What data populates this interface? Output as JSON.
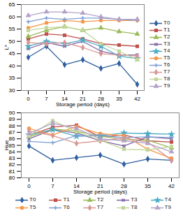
{
  "chart_data": [
    {
      "type": "line",
      "x_label": "Storage period (days)",
      "y_label": "L*",
      "categories": [
        "0",
        "7",
        "14",
        "21",
        "28",
        "35",
        "42"
      ],
      "ylim": [
        30,
        65
      ],
      "yticks": [
        30,
        35,
        40,
        45,
        50,
        55,
        60,
        65
      ],
      "legend": "right",
      "series": [
        {
          "name": "T0",
          "color": "#2f5f9e",
          "marker": "diamond",
          "values": [
            43.5,
            48,
            40.5,
            42.5,
            39,
            41,
            32.5
          ]
        },
        {
          "name": "T1",
          "color": "#c0504d",
          "marker": "square",
          "values": [
            51,
            53,
            52.5,
            51,
            49,
            48.5,
            48
          ]
        },
        {
          "name": "T2",
          "color": "#9bbb59",
          "marker": "triangle",
          "values": [
            52,
            54.5,
            56,
            54.5,
            55.5,
            54,
            53
          ]
        },
        {
          "name": "T3",
          "color": "#8064a2",
          "marker": "times",
          "values": [
            47,
            49.5,
            48,
            50,
            46,
            44.5,
            44.5
          ]
        },
        {
          "name": "T4",
          "color": "#4bacc6",
          "marker": "star",
          "values": [
            48,
            50,
            49,
            50.5,
            48,
            44,
            43
          ]
        },
        {
          "name": "T5",
          "color": "#f79646",
          "marker": "circle",
          "values": [
            55.5,
            57.5,
            58.5,
            58,
            58.5,
            58.5,
            58.5
          ]
        },
        {
          "name": "T6",
          "color": "#7f9fd4",
          "marker": "plus",
          "values": [
            58,
            59.5,
            59,
            59.5,
            59.5,
            59,
            58.5
          ]
        },
        {
          "name": "T7",
          "color": "#d99694",
          "marker": "diamond",
          "values": [
            49.5,
            49,
            49.5,
            47.5,
            45,
            44.5,
            44
          ]
        },
        {
          "name": "T8",
          "color": "#c3d69b",
          "marker": "square",
          "values": [
            54.5,
            55.5,
            56,
            54.5,
            49,
            46,
            42.5
          ]
        },
        {
          "name": "T9",
          "color": "#b3a2c7",
          "marker": "triangle",
          "values": [
            60.5,
            62,
            62,
            61.5,
            60,
            59,
            59
          ]
        }
      ]
    },
    {
      "type": "line",
      "x_label": "Storage period (days)",
      "y_label": "Hue",
      "categories": [
        "0",
        "7",
        "14",
        "21",
        "28",
        "35",
        "42"
      ],
      "ylim": [
        80,
        90
      ],
      "yticks": [
        80,
        81,
        82,
        83,
        84,
        85,
        86,
        87,
        88,
        89,
        90
      ],
      "legend": "bottom",
      "series": [
        {
          "name": "T0",
          "color": "#2f5f9e",
          "marker": "diamond",
          "values": [
            84.9,
            82.7,
            83.1,
            83.5,
            82.1,
            82.9,
            82.7
          ]
        },
        {
          "name": "T1",
          "color": "#c0504d",
          "marker": "square",
          "values": [
            86.5,
            87.8,
            88.1,
            86.3,
            86.6,
            85.7,
            85.5
          ]
        },
        {
          "name": "T2",
          "color": "#9bbb59",
          "marker": "triangle",
          "values": [
            86.3,
            87.5,
            87.2,
            86.4,
            85.9,
            85.8,
            84.6
          ]
        },
        {
          "name": "T3",
          "color": "#8064a2",
          "marker": "times",
          "values": [
            86.0,
            87.4,
            86.9,
            85.7,
            84.9,
            86.3,
            86.0
          ]
        },
        {
          "name": "T4",
          "color": "#4bacc6",
          "marker": "star",
          "values": [
            86.6,
            87.4,
            86.4,
            86.5,
            86.9,
            86.8,
            86.7
          ]
        },
        {
          "name": "T5",
          "color": "#f79646",
          "marker": "circle",
          "values": [
            87.6,
            86.6,
            87.9,
            86.8,
            86.5,
            84.4,
            83.0
          ]
        },
        {
          "name": "T6",
          "color": "#7f9fd4",
          "marker": "plus",
          "values": [
            85.6,
            85.4,
            86.5,
            86.5,
            86.2,
            86.3,
            86.2
          ]
        },
        {
          "name": "T7",
          "color": "#d99694",
          "marker": "diamond",
          "values": [
            87.2,
            86.5,
            85.3,
            85.7,
            86.1,
            85.5,
            82.7
          ]
        },
        {
          "name": "T8",
          "color": "#c3d69b",
          "marker": "square",
          "values": [
            86.4,
            88.8,
            87.1,
            85.8,
            84.4,
            84.3,
            84.8
          ]
        },
        {
          "name": "T9",
          "color": "#b3a2c7",
          "marker": "triangle",
          "values": [
            86.8,
            88.4,
            87.6,
            86.0,
            85.7,
            85.3,
            84.0
          ]
        }
      ]
    }
  ]
}
